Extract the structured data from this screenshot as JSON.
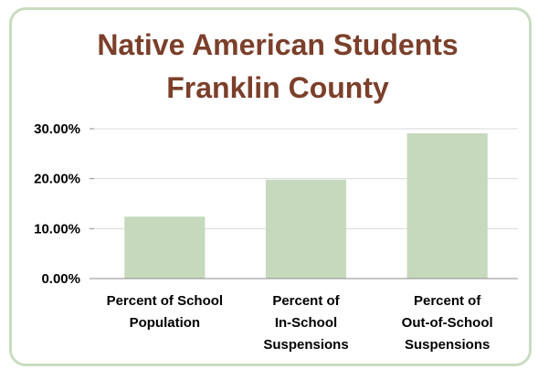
{
  "colors": {
    "border": "#c9dcc0",
    "bar": "#c6d9bc",
    "title": "#7b3f2a",
    "grid": "#d9d9d9"
  },
  "chart_data": {
    "type": "bar",
    "title": [
      "Native American Students",
      "Franklin County"
    ],
    "categories": [
      [
        "Percent of School",
        "Population"
      ],
      [
        "Percent of",
        "In-School",
        "Suspensions"
      ],
      [
        "Percent of",
        "Out-of-School",
        "Suspensions"
      ]
    ],
    "values": [
      0.124,
      0.198,
      0.291
    ],
    "ylim": [
      0,
      0.3
    ],
    "yticks": [
      "0.00%",
      "10.00%",
      "20.00%",
      "30.00%"
    ],
    "grid": true,
    "legend": "none"
  }
}
